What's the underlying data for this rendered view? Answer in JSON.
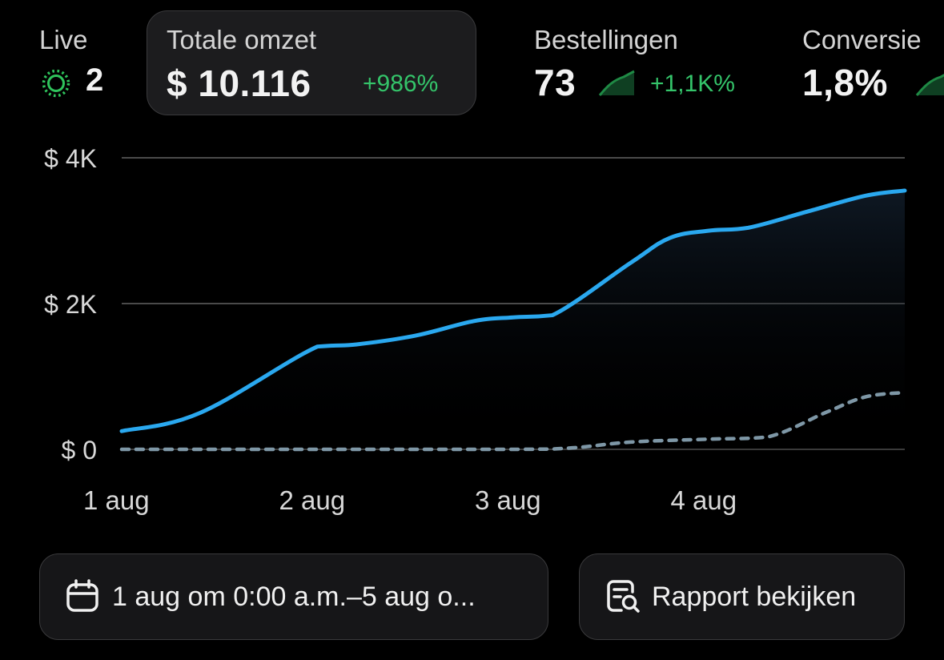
{
  "metrics": {
    "live": {
      "label": "Live",
      "value": "2"
    },
    "sales": {
      "label": "Totale omzet",
      "value": "$ 10.116",
      "change": "+986%"
    },
    "orders": {
      "label": "Bestellingen",
      "value": "73",
      "change": "+1,1K%"
    },
    "conversion": {
      "label": "Conversie",
      "value": "1,8%"
    }
  },
  "colors": {
    "accent": "#2aa8ef",
    "comparison": "#7e97a6",
    "positive": "#34c46a",
    "live": "#2fc45c",
    "background": "#000000",
    "card": "#1c1c1e"
  },
  "chart_data": {
    "type": "line",
    "x_categories": [
      "1 aug",
      "2 aug",
      "3 aug",
      "4 aug"
    ],
    "y_ticks": [
      "$ 4K",
      "$ 2K",
      "$ 0"
    ],
    "ylim": [
      0,
      4000
    ],
    "grid": true,
    "series": [
      {
        "style": "solid",
        "x": [
          0,
          0.4,
          1.0,
          1.2,
          1.5,
          1.8,
          2.0,
          2.2,
          2.6,
          2.8,
          3.0,
          3.2,
          3.5,
          3.8,
          4.0
        ],
        "y": [
          250,
          500,
          1410,
          1440,
          1560,
          1760,
          1810,
          1840,
          2560,
          2900,
          3000,
          3040,
          3260,
          3480,
          3550
        ]
      },
      {
        "style": "dashed",
        "x": [
          0,
          1.0,
          2.0,
          2.3,
          2.6,
          3.0,
          3.3,
          3.6,
          3.8,
          4.0
        ],
        "y": [
          0,
          0,
          0,
          20,
          100,
          140,
          170,
          510,
          720,
          780
        ]
      }
    ]
  },
  "footer": {
    "date_range": "1 aug om 0:00 a.m.–5 aug o...",
    "report_button": "Rapport bekijken"
  }
}
